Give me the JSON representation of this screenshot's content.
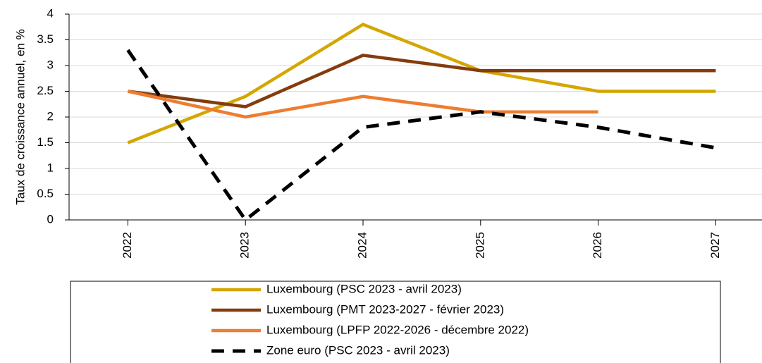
{
  "chart_data": {
    "type": "line",
    "y_label": "Taux de croissance annuel, en %",
    "categories": [
      "2022",
      "2023",
      "2024",
      "2025",
      "2026",
      "2027"
    ],
    "series": [
      {
        "name": "Luxembourg (PSC 2023 - avril 2023)",
        "color": "#d4a600",
        "dashed": false,
        "values": [
          1.5,
          2.4,
          3.8,
          2.9,
          2.5,
          2.5
        ]
      },
      {
        "name": "Luxembourg (PMT 2023-2027 - février 2023)",
        "color": "#843c0c",
        "dashed": false,
        "values": [
          2.5,
          2.2,
          3.2,
          2.9,
          2.9,
          2.9
        ]
      },
      {
        "name": "Luxembourg (LPFP 2022-2026 - décembre 2022)",
        "color": "#ed7d31",
        "dashed": false,
        "values": [
          2.5,
          2.0,
          2.4,
          2.1,
          2.1,
          null
        ]
      },
      {
        "name": "Zone euro (PSC 2023 - avril 2023)",
        "color": "#000000",
        "dashed": true,
        "values": [
          3.3,
          0.0,
          1.8,
          2.1,
          1.8,
          1.4
        ]
      }
    ],
    "ylim": [
      0,
      4
    ],
    "yticks": [
      0,
      0.5,
      1,
      1.5,
      2,
      2.5,
      3,
      3.5,
      4
    ],
    "grid": true,
    "legend": "bottom"
  }
}
